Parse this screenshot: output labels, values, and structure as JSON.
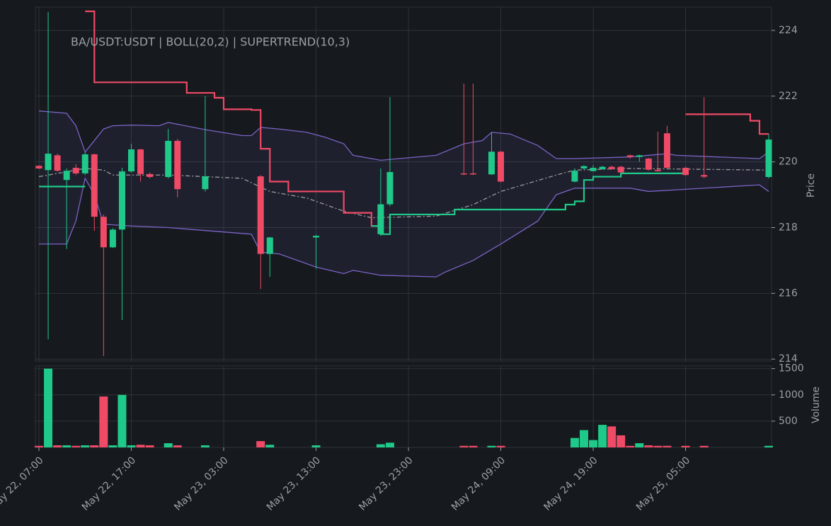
{
  "chart_data": [
    {
      "type": "candlestick",
      "title": "BA/USDT:USDT | BOLL(20,2) | SUPERTREND(10,3)",
      "ylabel": "Price",
      "up_color": "#1fc98a",
      "down_color": "#ef4a66",
      "grid": true,
      "xlim": [
        "May 22, 07:00",
        "May 25, 14:00"
      ],
      "ylim": [
        213.94,
        224.71
      ],
      "yticks": [
        214,
        216,
        218,
        220,
        222,
        224
      ],
      "xticks": [
        "May 22, 07:00",
        "May 22, 17:00",
        "May 23, 03:00",
        "May 23, 13:00",
        "May 23, 23:00",
        "May 24, 09:00",
        "May 24, 19:00",
        "May 25, 05:00"
      ],
      "x": [
        "May 22, 07:00",
        "May 22, 08:00",
        "May 22, 09:00",
        "May 22, 10:00",
        "May 22, 11:00",
        "May 22, 12:00",
        "May 22, 13:00",
        "May 22, 14:00",
        "May 22, 15:00",
        "May 22, 16:00",
        "May 22, 17:00",
        "May 22, 18:00",
        "May 22, 19:00",
        "May 22, 21:00",
        "May 22, 22:00",
        "May 23, 01:00",
        "May 23, 07:00",
        "May 23, 08:00",
        "May 23, 13:00",
        "May 23, 20:00",
        "May 23, 21:00",
        "May 24, 05:00",
        "May 24, 06:00",
        "May 24, 08:00",
        "May 24, 09:00",
        "May 24, 17:00",
        "May 24, 18:00",
        "May 24, 19:00",
        "May 24, 20:00",
        "May 24, 21:00",
        "May 24, 22:00",
        "May 24, 23:00",
        "May 25, 00:00",
        "May 25, 01:00",
        "May 25, 02:00",
        "May 25, 03:00",
        "May 25, 05:00",
        "May 25, 07:00",
        "May 25, 14:00"
      ],
      "open": [
        219.88,
        219.75,
        220.2,
        219.45,
        219.82,
        219.65,
        220.23,
        218.33,
        217.4,
        217.94,
        219.71,
        220.38,
        219.63,
        219.54,
        220.64,
        219.17,
        219.56,
        217.2,
        217.7,
        217.8,
        218.71,
        219.65,
        219.65,
        219.62,
        220.31,
        219.4,
        219.8,
        219.72,
        219.78,
        219.85,
        219.85,
        220.2,
        220.15,
        220.1,
        219.76,
        220.87,
        219.82,
        219.6,
        219.54
      ],
      "close": [
        219.8,
        220.25,
        219.73,
        219.73,
        219.65,
        220.23,
        218.33,
        217.4,
        217.94,
        219.71,
        220.38,
        219.63,
        219.54,
        220.64,
        219.17,
        219.56,
        217.2,
        217.7,
        217.75,
        218.71,
        219.69,
        219.62,
        219.62,
        220.31,
        219.4,
        219.73,
        219.87,
        219.82,
        219.85,
        219.78,
        219.68,
        220.15,
        220.2,
        219.76,
        219.72,
        219.82,
        219.6,
        219.55,
        220.68
      ],
      "high": [
        219.9,
        224.56,
        220.25,
        219.8,
        219.93,
        220.3,
        220.25,
        218.4,
        217.98,
        219.82,
        220.55,
        220.4,
        219.68,
        221.0,
        220.7,
        222.0,
        219.6,
        217.72,
        217.78,
        219.8,
        221.97,
        222.38,
        222.38,
        220.9,
        220.33,
        219.8,
        219.9,
        219.9,
        219.88,
        219.88,
        219.88,
        220.22,
        220.22,
        220.12,
        220.92,
        221.1,
        219.85,
        221.97,
        220.85
      ],
      "low": [
        219.78,
        214.6,
        219.7,
        217.35,
        219.6,
        219.6,
        217.9,
        214.09,
        217.38,
        215.19,
        219.68,
        219.4,
        219.5,
        219.5,
        218.92,
        219.1,
        216.13,
        216.5,
        216.75,
        217.75,
        218.65,
        219.6,
        219.6,
        219.6,
        219.38,
        219.38,
        219.75,
        219.7,
        219.76,
        219.76,
        219.65,
        220.1,
        220.0,
        219.74,
        219.7,
        219.8,
        219.58,
        219.5,
        219.5
      ],
      "overlays": [
        {
          "color": "#7a63c6",
          "x": [
            "May 22, 07:00",
            "May 22, 10:00",
            "May 22, 11:00",
            "May 22, 12:00",
            "May 22, 14:00",
            "May 22, 15:00",
            "May 22, 17:00",
            "May 22, 20:00",
            "May 22, 21:00",
            "May 23, 01:00",
            "May 23, 05:00",
            "May 23, 06:00",
            "May 23, 07:00",
            "May 23, 09:00",
            "May 23, 12:00",
            "May 23, 14:00",
            "May 23, 16:00",
            "May 23, 17:00",
            "May 23, 20:00",
            "May 24, 02:00",
            "May 24, 05:00",
            "May 24, 07:00",
            "May 24, 08:00",
            "May 24, 10:00",
            "May 24, 13:00",
            "May 24, 15:00",
            "May 24, 17:00",
            "May 24, 23:00",
            "May 25, 03:00",
            "May 25, 04:00",
            "May 25, 13:00",
            "May 25, 14:00"
          ],
          "values": [
            221.55,
            221.48,
            221.1,
            220.3,
            221.0,
            221.1,
            221.12,
            221.1,
            221.2,
            220.98,
            220.8,
            220.8,
            221.05,
            221.0,
            220.9,
            220.75,
            220.55,
            220.2,
            220.05,
            220.2,
            220.55,
            220.65,
            220.9,
            220.85,
            220.5,
            220.1,
            220.1,
            220.15,
            220.25,
            220.2,
            220.1,
            220.3
          ]
        },
        {
          "color": "#7a63c6",
          "x": [
            "May 22, 07:00",
            "May 22, 10:00",
            "May 22, 11:00",
            "May 22, 12:00",
            "May 22, 13:00",
            "May 22, 14:00",
            "May 22, 17:00",
            "May 22, 21:00",
            "May 23, 06:00",
            "May 23, 07:00",
            "May 23, 09:00",
            "May 23, 13:00",
            "May 23, 16:00",
            "May 23, 17:00",
            "May 23, 20:00",
            "May 24, 02:00",
            "May 24, 03:00",
            "May 24, 06:00",
            "May 24, 09:00",
            "May 24, 13:00",
            "May 24, 15:00",
            "May 24, 17:00",
            "May 24, 23:00",
            "May 25, 01:00",
            "May 25, 04:00",
            "May 25, 13:00",
            "May 25, 14:00"
          ],
          "values": [
            217.5,
            217.5,
            218.2,
            219.5,
            219.0,
            218.1,
            218.05,
            218.0,
            217.8,
            217.25,
            217.2,
            216.8,
            216.6,
            216.7,
            216.55,
            216.5,
            216.65,
            217.0,
            217.5,
            218.2,
            219.0,
            219.2,
            219.2,
            219.1,
            219.15,
            219.3,
            219.1
          ]
        },
        {
          "color": "#9a9a9a",
          "dash": true,
          "x": [
            "May 22, 07:00",
            "May 22, 12:00",
            "May 22, 14:00",
            "May 22, 15:00",
            "May 22, 21:00",
            "May 23, 05:00",
            "May 23, 08:00",
            "May 23, 12:00",
            "May 23, 16:00",
            "May 23, 19:00",
            "May 24, 02:00",
            "May 24, 06:00",
            "May 24, 09:00",
            "May 24, 15:00",
            "May 24, 17:00",
            "May 24, 23:00",
            "May 25, 14:00"
          ],
          "values": [
            219.55,
            219.8,
            219.75,
            219.6,
            219.6,
            219.5,
            219.1,
            218.9,
            218.5,
            218.3,
            218.35,
            218.7,
            219.1,
            219.6,
            219.75,
            219.8,
            219.75
          ]
        },
        {
          "color": "#ef4a66",
          "step": true,
          "width": 2.2,
          "x": [
            "May 22, 12:00",
            "May 22, 13:00",
            "May 22, 23:00",
            "May 23, 02:00",
            "May 23, 03:00",
            "May 23, 06:00",
            "May 23, 07:00",
            "May 23, 08:00",
            "May 23, 10:00",
            "May 23, 16:00",
            "May 23, 19:00",
            "May 23, 20:00"
          ],
          "values": [
            224.58,
            222.42,
            222.1,
            221.95,
            221.6,
            221.58,
            220.4,
            219.4,
            219.1,
            218.45,
            218.05,
            218.05
          ]
        },
        {
          "color": "#1fc98a",
          "step": true,
          "width": 2.2,
          "x": [
            "May 22, 07:00",
            "May 22, 12:00"
          ],
          "values": [
            219.25,
            219.25
          ]
        },
        {
          "color": "#1fc98a",
          "step": true,
          "width": 2.2,
          "x": [
            "May 23, 19:00",
            "May 23, 20:00",
            "May 23, 21:00",
            "May 24, 04:00",
            "May 24, 16:00",
            "May 24, 17:00",
            "May 24, 18:00",
            "May 24, 19:00",
            "May 24, 22:00",
            "May 25, 05:00"
          ],
          "values": [
            218.05,
            217.8,
            218.4,
            218.55,
            218.7,
            218.8,
            219.45,
            219.55,
            219.65,
            219.65
          ]
        },
        {
          "color": "#ef4a66",
          "step": true,
          "width": 2.2,
          "x": [
            "May 25, 05:00",
            "May 25, 12:00",
            "May 25, 13:00",
            "May 25, 14:00"
          ],
          "values": [
            221.45,
            221.25,
            220.85,
            220.85
          ]
        }
      ]
    },
    {
      "type": "bar",
      "ylabel": "Volume",
      "ylim": [
        0,
        1550
      ],
      "yticks": [
        500,
        1000,
        1500
      ],
      "grid": true,
      "values": [
        30,
        1500,
        40,
        40,
        30,
        40,
        40,
        970,
        40,
        1000,
        40,
        50,
        40,
        80,
        40,
        40,
        120,
        50,
        40,
        60,
        90,
        30,
        30,
        30,
        30,
        180,
        330,
        140,
        430,
        400,
        230,
        30,
        80,
        40,
        30,
        30,
        30,
        30,
        30
      ]
    }
  ]
}
